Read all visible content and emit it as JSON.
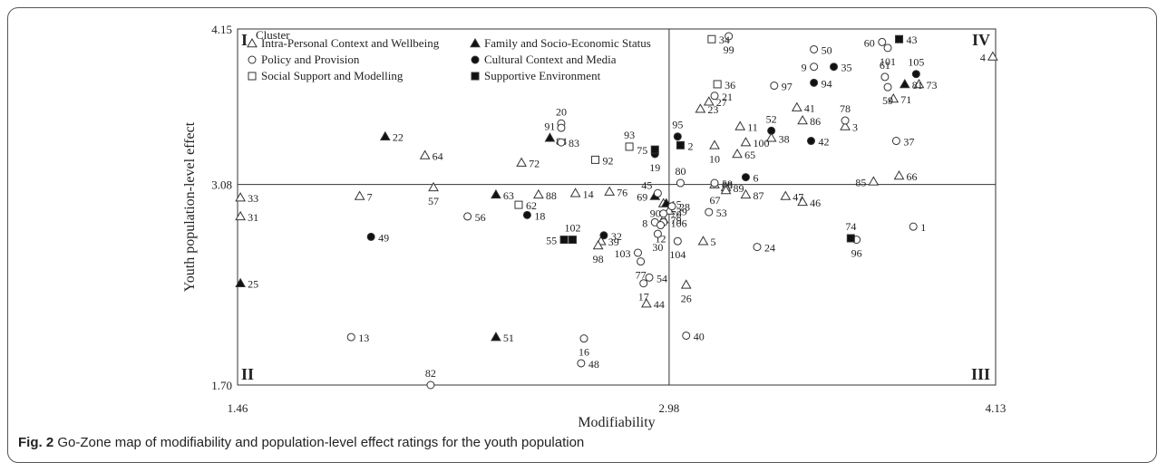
{
  "figure": {
    "caption_label": "Fig. 2",
    "caption_text": "Go-Zone map of modifiability and population-level effect ratings for the youth population"
  },
  "chart_data": {
    "type": "scatter",
    "xlabel": "Modifiability",
    "ylabel": "Youth population-level effect",
    "xlim": [
      1.46,
      4.13
    ],
    "ylim": [
      1.7,
      4.15
    ],
    "x_ticks": [
      "1.46",
      "2.98",
      "4.13"
    ],
    "y_ticks": [
      "1.70",
      "3.08",
      "4.15"
    ],
    "x_mean": 2.98,
    "y_mean": 3.08,
    "quadrants": {
      "top_left": "I",
      "bottom_left": "II",
      "bottom_right": "III",
      "top_right": "IV"
    },
    "legend": {
      "title": "Cluster",
      "placement": "top-left",
      "entries": [
        {
          "name": "Intra-Personal Context and Wellbeing",
          "marker": "triangle-open"
        },
        {
          "name": "Family and Socio-Economic Status",
          "marker": "triangle-filled"
        },
        {
          "name": "Policy and Provision",
          "marker": "circle-open"
        },
        {
          "name": "Cultural Context and Media",
          "marker": "circle-filled"
        },
        {
          "name": "Social Support and Modelling",
          "marker": "square-open"
        },
        {
          "name": "Supportive Environment",
          "marker": "square-filled"
        }
      ]
    },
    "series": [
      {
        "marker": "triangle-open",
        "points": [
          {
            "label": "4",
            "x": 4.12,
            "y": 3.96,
            "lp": "l"
          },
          {
            "label": "73",
            "x": 3.86,
            "y": 3.77
          },
          {
            "label": "71",
            "x": 3.77,
            "y": 3.67
          },
          {
            "label": "3",
            "x": 3.6,
            "y": 3.48
          },
          {
            "label": "41",
            "x": 3.43,
            "y": 3.61
          },
          {
            "label": "86",
            "x": 3.45,
            "y": 3.52
          },
          {
            "label": "38",
            "x": 3.34,
            "y": 3.4
          },
          {
            "label": "11",
            "x": 3.23,
            "y": 3.48
          },
          {
            "label": "100",
            "x": 3.25,
            "y": 3.37
          },
          {
            "label": "10",
            "x": 3.14,
            "y": 3.35,
            "lp": "b"
          },
          {
            "label": "65",
            "x": 3.22,
            "y": 3.29
          },
          {
            "label": "27",
            "x": 3.12,
            "y": 3.65
          },
          {
            "label": "23",
            "x": 3.09,
            "y": 3.6
          },
          {
            "label": "85",
            "x": 3.7,
            "y": 3.1,
            "lp": "l"
          },
          {
            "label": "66",
            "x": 3.79,
            "y": 3.14
          },
          {
            "label": "68",
            "x": 3.14,
            "y": 3.08
          },
          {
            "label": "89",
            "x": 3.18,
            "y": 3.06
          },
          {
            "label": "67",
            "x": 3.18,
            "y": 3.04,
            "lp": "bl"
          },
          {
            "label": "87",
            "x": 3.25,
            "y": 3.01
          },
          {
            "label": "47",
            "x": 3.39,
            "y": 3.0
          },
          {
            "label": "46",
            "x": 3.45,
            "y": 2.96
          },
          {
            "label": "5",
            "x": 3.1,
            "y": 2.69
          },
          {
            "label": "39",
            "x": 2.74,
            "y": 2.69
          },
          {
            "label": "98",
            "x": 2.73,
            "y": 2.66,
            "lp": "b"
          },
          {
            "label": "26",
            "x": 3.04,
            "y": 2.39,
            "lp": "b"
          },
          {
            "label": "44",
            "x": 2.9,
            "y": 2.26
          },
          {
            "label": "14",
            "x": 2.65,
            "y": 3.02
          },
          {
            "label": "76",
            "x": 2.77,
            "y": 3.03
          },
          {
            "label": "88",
            "x": 2.52,
            "y": 3.01
          },
          {
            "label": "72",
            "x": 2.46,
            "y": 3.23
          },
          {
            "label": "64",
            "x": 2.12,
            "y": 3.28
          },
          {
            "label": "57",
            "x": 2.15,
            "y": 3.06,
            "lp": "b"
          },
          {
            "label": "33",
            "x": 1.47,
            "y": 2.99
          },
          {
            "label": "7",
            "x": 1.89,
            "y": 3.0
          },
          {
            "label": "31",
            "x": 1.47,
            "y": 2.86
          },
          {
            "label": "15",
            "x": 2.96,
            "y": 2.95
          },
          {
            "label": "29",
            "x": 2.98,
            "y": 2.9
          },
          {
            "label": "79",
            "x": 2.96,
            "y": 2.84
          }
        ]
      },
      {
        "marker": "triangle-filled",
        "points": [
          {
            "label": "81",
            "x": 3.81,
            "y": 3.77
          },
          {
            "label": "22",
            "x": 1.98,
            "y": 3.41
          },
          {
            "label": "91",
            "x": 2.56,
            "y": 3.4,
            "lp": "t"
          },
          {
            "label": "63",
            "x": 2.37,
            "y": 3.01
          },
          {
            "label": "69",
            "x": 2.93,
            "y": 3.0,
            "lp": "l"
          },
          {
            "label": "90",
            "x": 2.97,
            "y": 2.95,
            "lp": "bl"
          },
          {
            "label": "25",
            "x": 1.47,
            "y": 2.4
          },
          {
            "label": "51",
            "x": 2.37,
            "y": 2.03
          }
        ]
      },
      {
        "marker": "circle-open",
        "points": [
          {
            "label": "99",
            "x": 3.19,
            "y": 4.1,
            "lp": "b"
          },
          {
            "label": "50",
            "x": 3.49,
            "y": 4.01
          },
          {
            "label": "60",
            "x": 3.73,
            "y": 4.06,
            "lp": "l"
          },
          {
            "label": "101",
            "x": 3.75,
            "y": 4.02,
            "lp": "b"
          },
          {
            "label": "9",
            "x": 3.49,
            "y": 3.89,
            "lp": "l"
          },
          {
            "label": "61",
            "x": 3.74,
            "y": 3.82,
            "lp": "t"
          },
          {
            "label": "59",
            "x": 3.75,
            "y": 3.75,
            "lp": "b"
          },
          {
            "label": "97",
            "x": 3.35,
            "y": 3.76
          },
          {
            "label": "21",
            "x": 3.14,
            "y": 3.69
          },
          {
            "label": "78",
            "x": 3.6,
            "y": 3.52,
            "lp": "t"
          },
          {
            "label": "37",
            "x": 3.78,
            "y": 3.38
          },
          {
            "label": "20",
            "x": 2.6,
            "y": 3.5,
            "lp": "t"
          },
          {
            "label": "84",
            "x": 2.6,
            "y": 3.47,
            "lp": "b"
          },
          {
            "label": "83",
            "x": 2.6,
            "y": 3.37
          },
          {
            "label": "80",
            "x": 3.02,
            "y": 3.09,
            "lp": "t"
          },
          {
            "label": "58",
            "x": 3.14,
            "y": 3.09
          },
          {
            "label": "45",
            "x": 2.94,
            "y": 3.02,
            "lp": "tl"
          },
          {
            "label": "28",
            "x": 2.99,
            "y": 2.93
          },
          {
            "label": "70",
            "x": 2.96,
            "y": 2.88
          },
          {
            "label": "106",
            "x": 2.96,
            "y": 2.82
          },
          {
            "label": "8",
            "x": 2.93,
            "y": 2.82,
            "lp": "l"
          },
          {
            "label": "12",
            "x": 2.95,
            "y": 2.8,
            "lp": "b"
          },
          {
            "label": "53",
            "x": 3.12,
            "y": 2.89
          },
          {
            "label": "30",
            "x": 2.94,
            "y": 2.74,
            "lp": "b"
          },
          {
            "label": "104",
            "x": 3.01,
            "y": 2.69,
            "lp": "b"
          },
          {
            "label": "24",
            "x": 3.29,
            "y": 2.65
          },
          {
            "label": "1",
            "x": 3.84,
            "y": 2.79
          },
          {
            "label": "96",
            "x": 3.64,
            "y": 2.7,
            "lp": "b"
          },
          {
            "label": "103",
            "x": 2.87,
            "y": 2.61,
            "lp": "l"
          },
          {
            "label": "77",
            "x": 2.88,
            "y": 2.55,
            "lp": "b"
          },
          {
            "label": "54",
            "x": 2.91,
            "y": 2.44
          },
          {
            "label": "17",
            "x": 2.89,
            "y": 2.4,
            "lp": "b"
          },
          {
            "label": "40",
            "x": 3.04,
            "y": 2.04
          },
          {
            "label": "16",
            "x": 2.68,
            "y": 2.02,
            "lp": "b"
          },
          {
            "label": "48",
            "x": 2.67,
            "y": 1.85
          },
          {
            "label": "56",
            "x": 2.27,
            "y": 2.86
          },
          {
            "label": "13",
            "x": 1.86,
            "y": 2.03
          },
          {
            "label": "82",
            "x": 2.14,
            "y": 1.7,
            "lp": "t"
          }
        ]
      },
      {
        "marker": "circle-filled",
        "points": [
          {
            "label": "35",
            "x": 3.56,
            "y": 3.89
          },
          {
            "label": "105",
            "x": 3.85,
            "y": 3.84,
            "lp": "t"
          },
          {
            "label": "94",
            "x": 3.49,
            "y": 3.78
          },
          {
            "label": "52",
            "x": 3.34,
            "y": 3.45,
            "lp": "t"
          },
          {
            "label": "42",
            "x": 3.48,
            "y": 3.38
          },
          {
            "label": "95",
            "x": 3.01,
            "y": 3.41,
            "lp": "t"
          },
          {
            "label": "19",
            "x": 2.93,
            "y": 3.29,
            "lp": "b"
          },
          {
            "label": "6",
            "x": 3.25,
            "y": 3.13
          },
          {
            "label": "18",
            "x": 2.48,
            "y": 2.87
          },
          {
            "label": "32",
            "x": 2.75,
            "y": 2.73
          },
          {
            "label": "49",
            "x": 1.93,
            "y": 2.72
          }
        ]
      },
      {
        "marker": "square-open",
        "points": [
          {
            "label": "34",
            "x": 3.13,
            "y": 4.08
          },
          {
            "label": "36",
            "x": 3.15,
            "y": 3.77
          },
          {
            "label": "93",
            "x": 2.84,
            "y": 3.34,
            "lp": "t"
          },
          {
            "label": "92",
            "x": 2.72,
            "y": 3.25
          },
          {
            "label": "62",
            "x": 2.45,
            "y": 2.94
          }
        ]
      },
      {
        "marker": "square-filled",
        "points": [
          {
            "label": "43",
            "x": 3.79,
            "y": 4.08
          },
          {
            "label": "75",
            "x": 2.93,
            "y": 3.32,
            "lp": "l"
          },
          {
            "label": "2",
            "x": 3.02,
            "y": 3.35
          },
          {
            "label": "55",
            "x": 2.61,
            "y": 2.7,
            "lp": "l"
          },
          {
            "label": "102",
            "x": 2.64,
            "y": 2.7,
            "lp": "t"
          },
          {
            "label": "74",
            "x": 3.62,
            "y": 2.71,
            "lp": "t"
          }
        ]
      }
    ]
  }
}
